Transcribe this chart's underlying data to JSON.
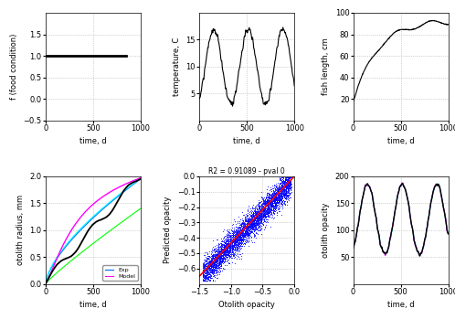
{
  "fig_width": 4.98,
  "fig_height": 3.49,
  "dpi": 100,
  "bg_color": "#ffffff",
  "panels": {
    "top_left": {
      "xlabel": "time, d",
      "ylabel": "f (food condition)",
      "xlim": [
        0,
        1000
      ],
      "ylim": [
        -0.5,
        2
      ],
      "yticks": [
        -0.5,
        0,
        0.5,
        1,
        1.5
      ],
      "xticks": [
        0,
        500,
        1000
      ],
      "line_color": "#000000",
      "line_width": 2.0
    },
    "top_mid": {
      "xlabel": "time, d",
      "ylabel": "temperature, C",
      "xlim": [
        0,
        1000
      ],
      "ylim": [
        0,
        20
      ],
      "yticks": [
        5,
        10,
        15
      ],
      "xticks": [
        0,
        500,
        1000
      ],
      "line_color": "#000000",
      "line_width": 0.8
    },
    "top_right": {
      "xlabel": "time, d",
      "ylabel": "fish length, cm",
      "xlim": [
        0,
        1000
      ],
      "ylim": [
        0,
        100
      ],
      "yticks": [
        20,
        40,
        60,
        80,
        100
      ],
      "xticks": [
        0,
        500,
        1000
      ],
      "line_color": "#000000",
      "line_width": 0.8
    },
    "bot_left": {
      "xlabel": "time, d",
      "ylabel": "otolith radius, mm",
      "xlim": [
        0,
        1000
      ],
      "ylim": [
        0,
        2
      ],
      "yticks": [
        0,
        0.5,
        1,
        1.5,
        2
      ],
      "xticks": [
        0,
        500,
        1000
      ]
    },
    "bot_mid": {
      "xlabel": "Otolith opacity",
      "ylabel": "Predicted opacity",
      "xlim": [
        -1.5,
        0
      ],
      "ylim": [
        -0.7,
        0
      ],
      "xticks": [
        -1.5,
        -1.0,
        -0.5,
        0
      ],
      "yticks": [
        -0.6,
        -0.5,
        -0.4,
        -0.3,
        -0.2,
        -0.1,
        0
      ],
      "title": "R2 = 0.91089 - pval 0",
      "scatter_color": "#0000ff",
      "line_color": "#ff0000"
    },
    "bot_right": {
      "xlabel": "time, d",
      "ylabel": "otolith opacity",
      "xlim": [
        0,
        1000
      ],
      "ylim": [
        0,
        200
      ],
      "yticks": [
        50,
        100,
        150,
        200
      ],
      "xticks": [
        0,
        500,
        1000
      ]
    }
  }
}
